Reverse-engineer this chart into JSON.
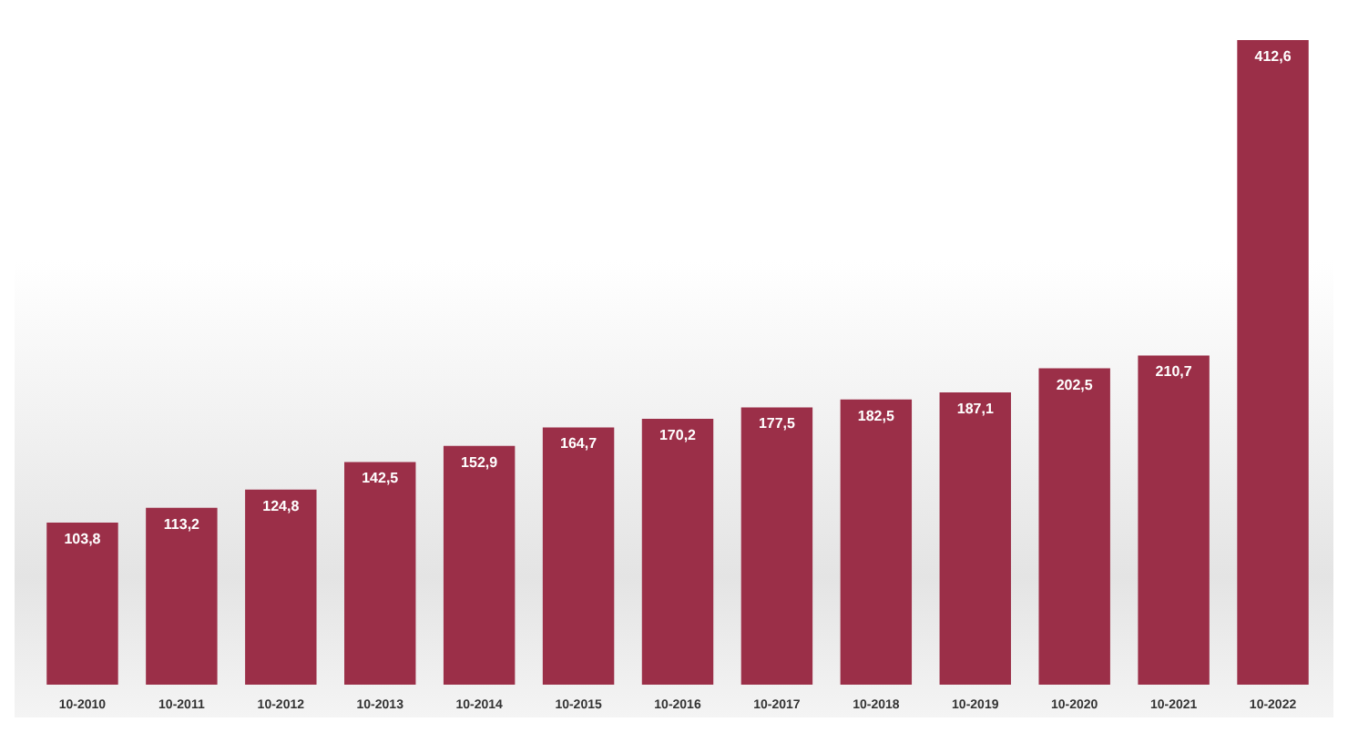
{
  "chart_data": {
    "type": "bar",
    "categories": [
      "10-2010",
      "10-2011",
      "10-2012",
      "10-2013",
      "10-2014",
      "10-2015",
      "10-2016",
      "10-2017",
      "10-2018",
      "10-2019",
      "10-2020",
      "10-2021",
      "10-2022"
    ],
    "values": [
      103.8,
      113.2,
      124.8,
      142.5,
      152.9,
      164.7,
      170.2,
      177.5,
      182.5,
      187.1,
      202.5,
      210.7,
      412.6
    ],
    "value_labels": [
      "103,8",
      "113,2",
      "124,8",
      "142,5",
      "152,9",
      "164,7",
      "170,2",
      "177,5",
      "182,5",
      "187,1",
      "202,5",
      "210,7",
      "412,6"
    ],
    "color": "#9b2f48"
  }
}
